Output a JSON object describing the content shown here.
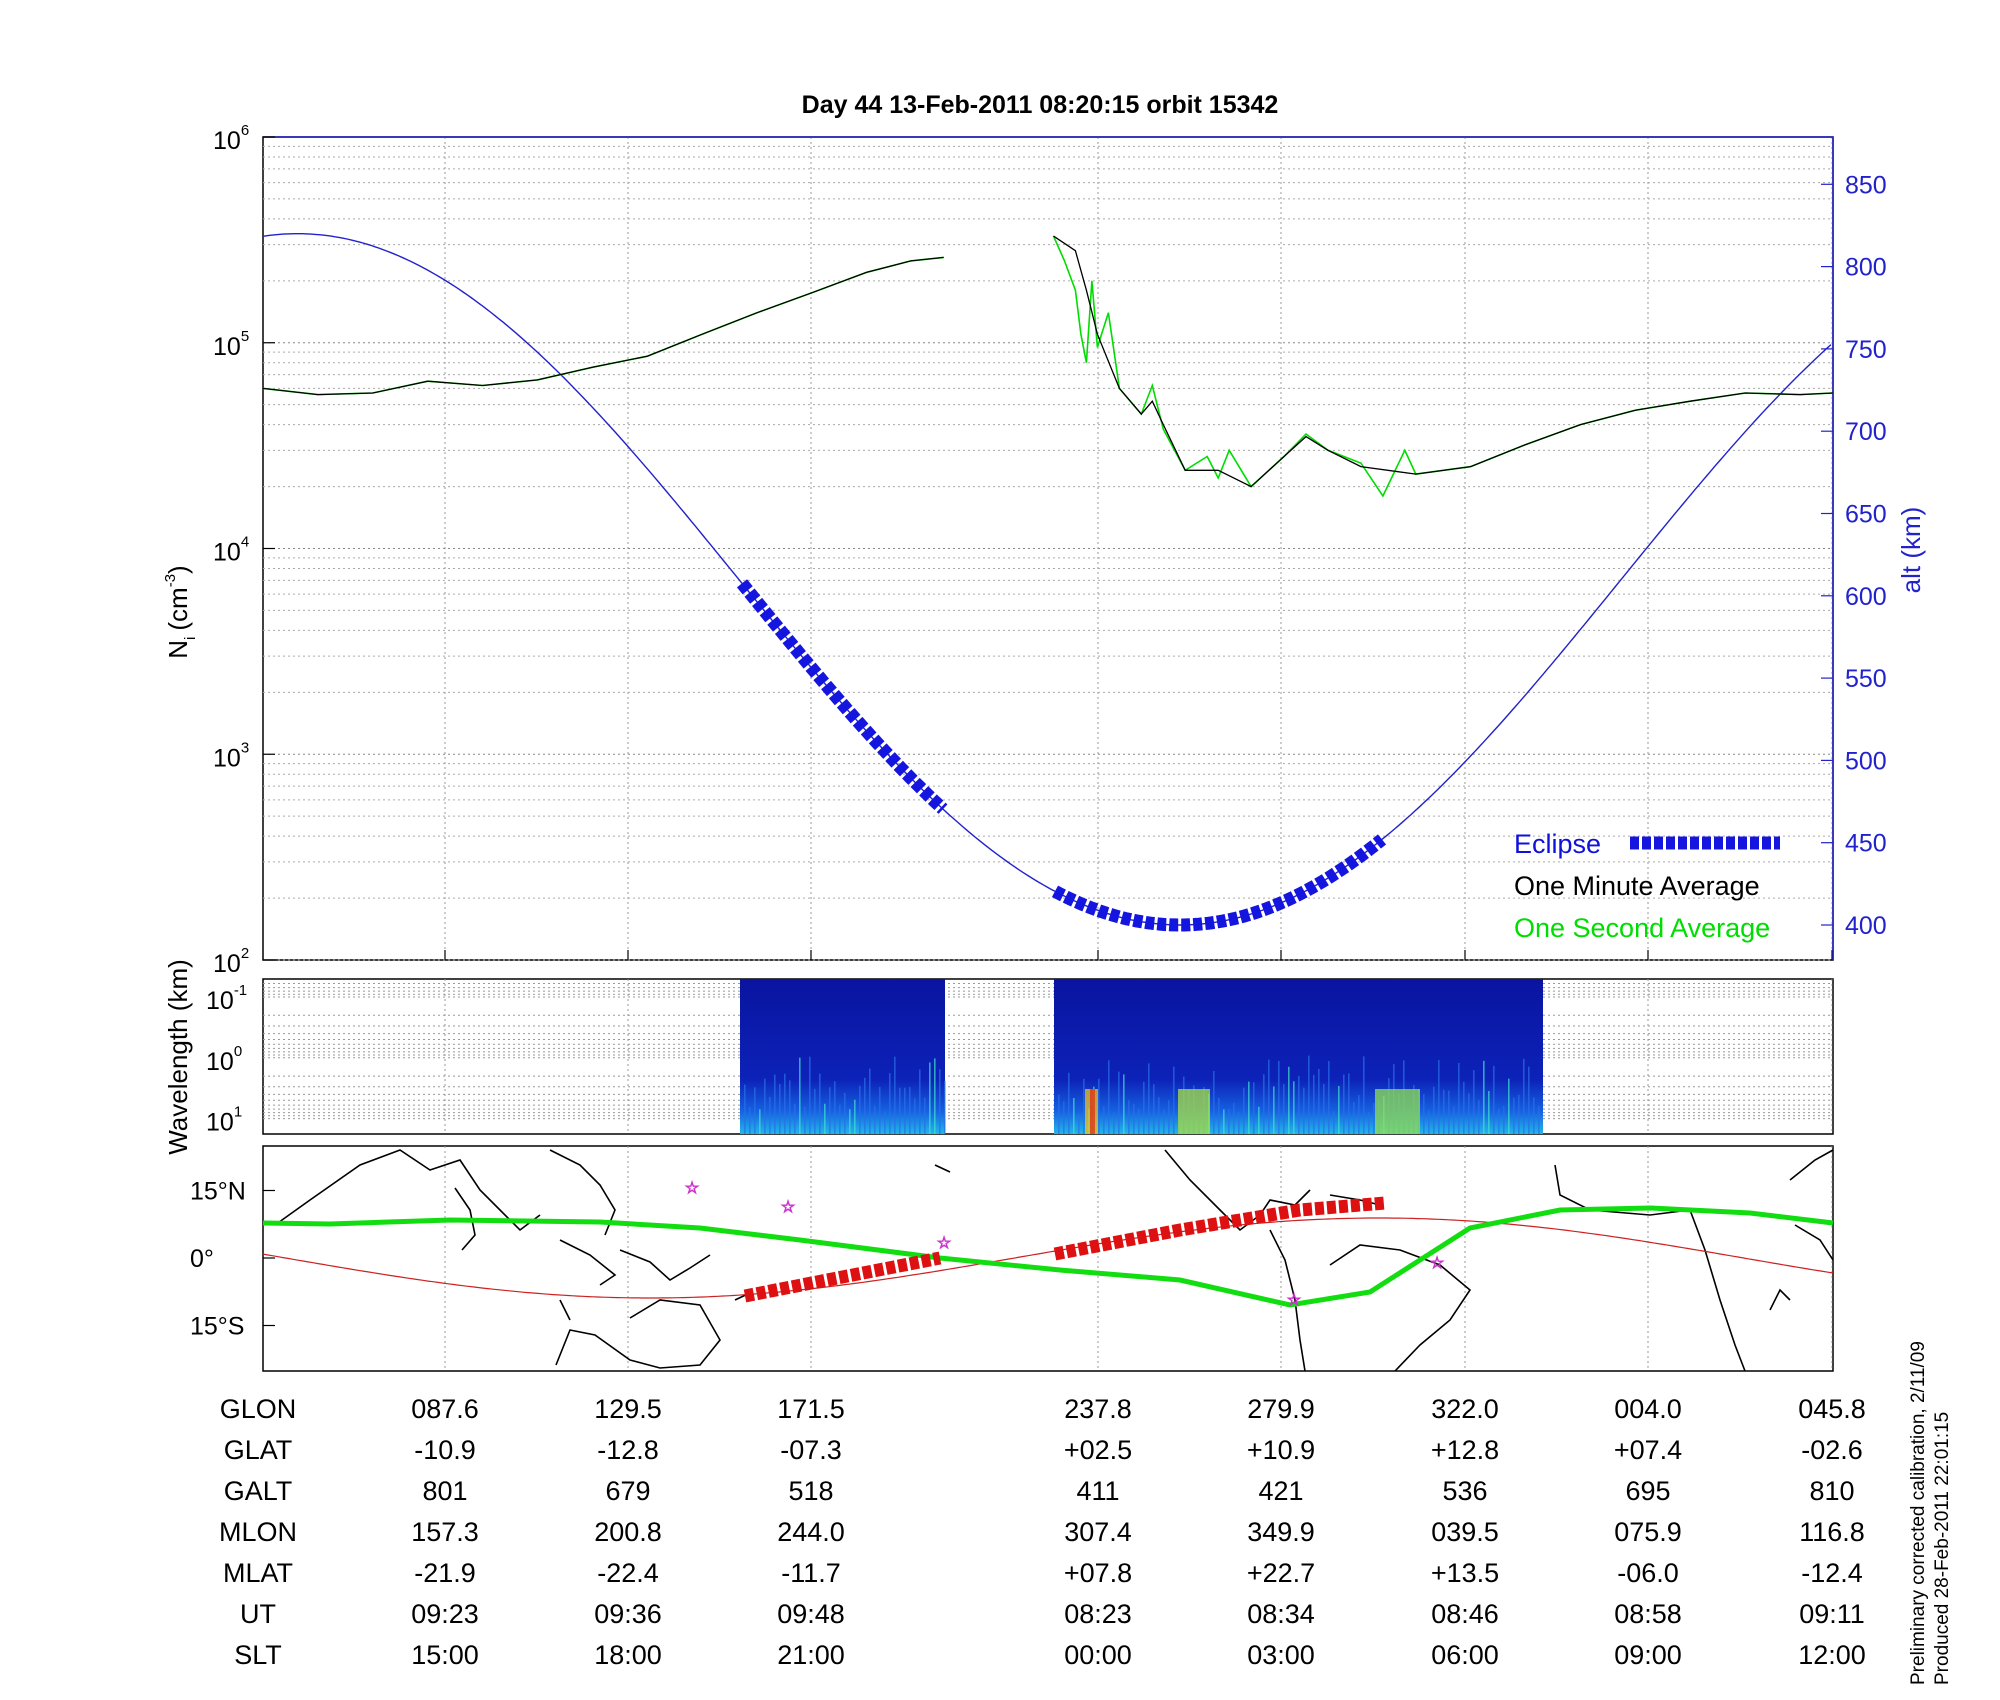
{
  "title": "Day 44  13-Feb-2011 08:20:15   orbit 15342",
  "panel_top": {
    "ylabel_left": "N",
    "ylabel_left_sub": "i",
    "ylabel_left_unit": "(cm",
    "ylabel_left_exp": "-3",
    "ylabel_left_close": ")",
    "ylabel_right": "alt (km)",
    "yticks_left": [
      {
        "base": "10",
        "exp": "2"
      },
      {
        "base": "10",
        "exp": "3"
      },
      {
        "base": "10",
        "exp": "4"
      },
      {
        "base": "10",
        "exp": "5"
      },
      {
        "base": "10",
        "exp": "6"
      }
    ],
    "yticks_right": [
      "400",
      "450",
      "500",
      "550",
      "600",
      "650",
      "700",
      "750",
      "800",
      "850"
    ]
  },
  "legend": {
    "eclipse": "Eclipse",
    "minute": "One Minute Average",
    "second": "One Second Average"
  },
  "panel_mid": {
    "ylabel": "Wavelength (km)",
    "yticks": [
      {
        "base": "10",
        "exp": "-1"
      },
      {
        "base": "10",
        "exp": "0"
      },
      {
        "base": "10",
        "exp": "1"
      }
    ]
  },
  "panel_map": {
    "yticks": [
      "15°N",
      "0°",
      "15°S"
    ]
  },
  "table": {
    "row_labels": [
      "GLON",
      "GLAT",
      "GALT",
      "MLON",
      "MLAT",
      "UT",
      "SLT"
    ],
    "columns": [
      [
        "087.6",
        "-10.9",
        "801",
        "157.3",
        "-21.9",
        "09:23",
        "15:00"
      ],
      [
        "129.5",
        "-12.8",
        "679",
        "200.8",
        "-22.4",
        "09:36",
        "18:00"
      ],
      [
        "171.5",
        "-07.3",
        "518",
        "244.0",
        "-11.7",
        "09:48",
        "21:00"
      ],
      [
        "237.8",
        "+02.5",
        "411",
        "307.4",
        "+07.8",
        "08:23",
        "00:00"
      ],
      [
        "279.9",
        "+10.9",
        "421",
        "349.9",
        "+22.7",
        "08:34",
        "03:00"
      ],
      [
        "322.0",
        "+12.8",
        "536",
        "039.5",
        "+13.5",
        "08:46",
        "06:00"
      ],
      [
        "004.0",
        "+07.4",
        "695",
        "075.9",
        "-06.0",
        "08:58",
        "09:00"
      ],
      [
        "045.8",
        "-02.6",
        "810",
        "116.8",
        "-12.4",
        "09:11",
        "12:00"
      ]
    ]
  },
  "note_line1": "Preliminary corrected calibration, 2/11/09",
  "note_line2": "Produced 28-Feb-2011 22:01:15",
  "chart_data": {
    "type": "line",
    "title": "Day 44  13-Feb-2011 08:20:15   orbit 15342",
    "x_ticks_slt": [
      "15:00",
      "18:00",
      "21:00",
      "00:00",
      "03:00",
      "06:00",
      "09:00",
      "12:00"
    ],
    "y_left_label": "Ni (cm-3)",
    "y_left_scale": "log",
    "y_left_range": [
      100,
      1000000
    ],
    "y_right_label": "alt (km)",
    "y_right_range": [
      375,
      875
    ],
    "series": [
      {
        "name": "One Minute Average",
        "color": "#000000",
        "segments": [
          [
            [
              0.0,
              60000
            ],
            [
              0.05,
              56000
            ],
            [
              0.1,
              57000
            ],
            [
              0.15,
              65000
            ],
            [
              0.2,
              62000
            ],
            [
              0.25,
              66000
            ],
            [
              0.3,
              76000
            ],
            [
              0.35,
              86000
            ],
            [
              0.4,
              110000
            ],
            [
              0.45,
              140000
            ],
            [
              0.5,
              175000
            ],
            [
              0.55,
              220000
            ],
            [
              0.59,
              250000
            ],
            [
              0.62,
              260000
            ]
          ],
          [
            [
              0.72,
              330000
            ],
            [
              0.74,
              280000
            ],
            [
              0.75,
              180000
            ],
            [
              0.76,
              110000
            ],
            [
              0.78,
              60000
            ],
            [
              0.8,
              45000
            ],
            [
              0.81,
              52000
            ],
            [
              0.82,
              40000
            ],
            [
              0.84,
              24000
            ],
            [
              0.87,
              24000
            ],
            [
              0.9,
              20000
            ],
            [
              0.93,
              28000
            ],
            [
              0.95,
              35000
            ],
            [
              0.97,
              30000
            ],
            [
              1.0,
              25000
            ],
            [
              1.05,
              23000
            ],
            [
              1.1,
              25000
            ],
            [
              1.15,
              32000
            ],
            [
              1.2,
              40000
            ],
            [
              1.25,
              47000
            ],
            [
              1.3,
              52000
            ],
            [
              1.35,
              57000
            ],
            [
              1.4,
              56000
            ],
            [
              1.43,
              57000
            ]
          ]
        ]
      },
      {
        "name": "One Second Average",
        "color": "#00dd00",
        "segments": [
          [
            [
              0.0,
              60000
            ],
            [
              0.05,
              56000
            ],
            [
              0.1,
              57000
            ],
            [
              0.15,
              65000
            ],
            [
              0.2,
              62000
            ],
            [
              0.25,
              66000
            ],
            [
              0.3,
              76000
            ],
            [
              0.35,
              86000
            ],
            [
              0.4,
              110000
            ],
            [
              0.45,
              140000
            ],
            [
              0.5,
              175000
            ],
            [
              0.55,
              220000
            ],
            [
              0.59,
              250000
            ],
            [
              0.62,
              260000
            ]
          ],
          [
            [
              0.72,
              330000
            ],
            [
              0.73,
              250000
            ],
            [
              0.74,
              180000
            ],
            [
              0.745,
              110000
            ],
            [
              0.75,
              80000
            ],
            [
              0.755,
              200000
            ],
            [
              0.76,
              95000
            ],
            [
              0.77,
              140000
            ],
            [
              0.78,
              60000
            ],
            [
              0.8,
              45000
            ],
            [
              0.81,
              62000
            ],
            [
              0.82,
              38000
            ],
            [
              0.84,
              24000
            ],
            [
              0.86,
              28000
            ],
            [
              0.87,
              22000
            ],
            [
              0.88,
              30000
            ],
            [
              0.9,
              20000
            ],
            [
              0.93,
              28000
            ],
            [
              0.95,
              36000
            ],
            [
              0.97,
              30000
            ],
            [
              1.0,
              26000
            ],
            [
              1.02,
              18000
            ],
            [
              1.04,
              30000
            ],
            [
              1.05,
              23000
            ],
            [
              1.1,
              25000
            ],
            [
              1.15,
              32000
            ],
            [
              1.2,
              40000
            ],
            [
              1.25,
              47000
            ],
            [
              1.3,
              52000
            ],
            [
              1.35,
              57000
            ],
            [
              1.4,
              56000
            ],
            [
              1.43,
              57000
            ]
          ]
        ]
      },
      {
        "name": "alt",
        "color": "#2222cc",
        "axis": "right",
        "description": "sinusoidal orbit altitude, min ~400 km near SLT 01:00, max ~820 km near SLT 12:30"
      }
    ],
    "eclipse_segments_slt_fraction": [
      [
        0.44,
        0.63
      ],
      [
        0.72,
        0.96
      ]
    ]
  }
}
